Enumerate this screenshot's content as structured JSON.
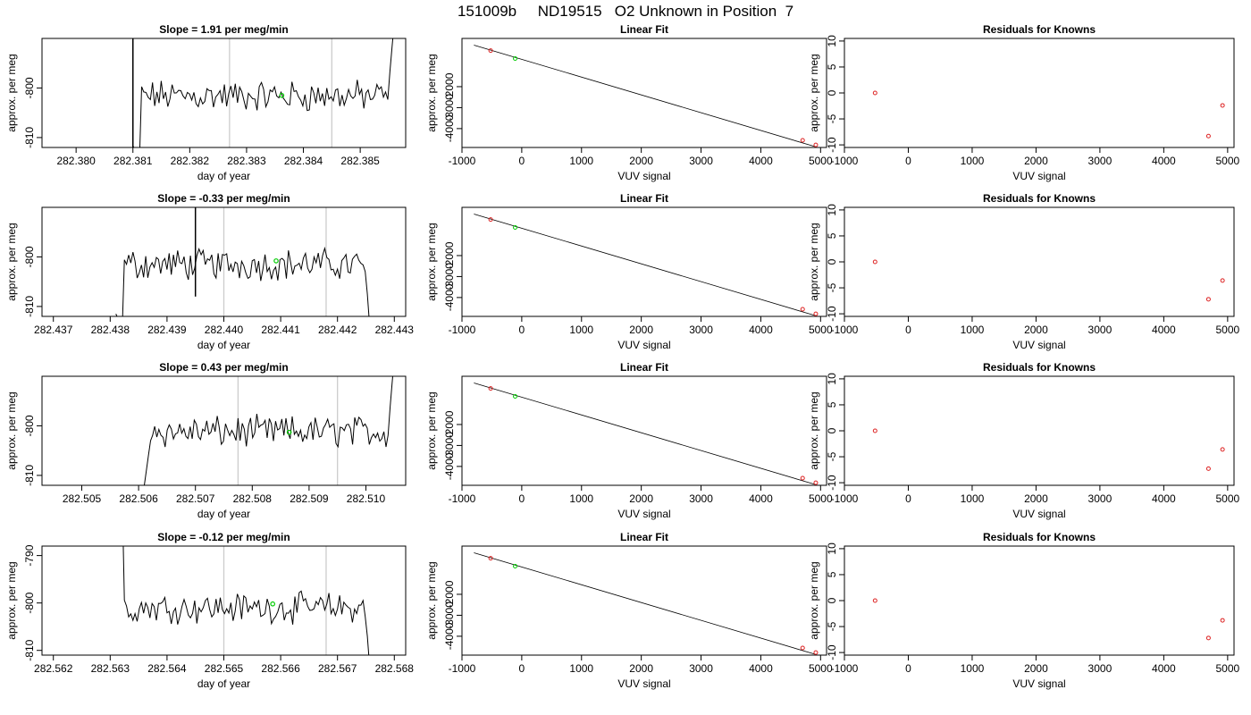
{
  "figure_title": "151009b     ND19515   O2 Unknown in Position  7",
  "chart_data": [
    {
      "type": "line",
      "title": "Slope =  1.91  per meg/min",
      "xlabel": "day of year",
      "ylabel": "approx. per meg",
      "xlim": [
        282.3794,
        282.3858
      ],
      "ylim": [
        -812,
        -790
      ],
      "xticks": [
        "282.380",
        "282.381",
        "282.382",
        "282.383",
        "282.384",
        "282.385"
      ],
      "yticks": [
        "-800",
        "-810"
      ],
      "vlines": [
        282.3827,
        282.3845
      ],
      "trace": {
        "start": 282.381,
        "end": 282.3856,
        "base": -801.6,
        "leading_spike": 282.381,
        "trailing_rise": 282.3856,
        "marker_x": 282.38362,
        "marker_y": -801.5
      },
      "color": "#000000",
      "vline_color": "#cccccc",
      "marker_color": "#00cc00"
    },
    {
      "type": "scatter",
      "title": "Linear Fit",
      "xlabel": "VUV signal",
      "ylabel": "approx. per meg",
      "xlim": [
        -1000,
        5100
      ],
      "ylim": [
        -4900,
        300
      ],
      "xticks": [
        "-1000",
        "0",
        "1000",
        "2000",
        "3000",
        "4000",
        "5000"
      ],
      "yticks": [
        "-2000",
        "-3000",
        "-4000"
      ],
      "fit_line": {
        "x": [
          -800,
          4920
        ],
        "y": [
          -18,
          -4870
        ]
      },
      "knowns": {
        "x": [
          -520,
          4700,
          4920
        ],
        "y": [
          -280,
          -4560,
          -4780
        ]
      },
      "unknown": {
        "x": [
          -110
        ],
        "y": [
          -660
        ]
      },
      "known_color": "#dd2222",
      "unknown_color": "#00cc00"
    },
    {
      "type": "scatter",
      "title": "Residuals for Knowns",
      "xlabel": "VUV signal",
      "ylabel": "approx. per meg",
      "xlim": [
        -1000,
        5100
      ],
      "ylim": [
        -10.5,
        10.5
      ],
      "xticks": [
        "-1000",
        "0",
        "1000",
        "2000",
        "3000",
        "4000",
        "5000"
      ],
      "yticks": [
        "10",
        "5",
        "0",
        "-5",
        "-10"
      ],
      "points": {
        "x": [
          -520,
          4700,
          4920
        ],
        "y": [
          0,
          -8.3,
          -2.4
        ]
      },
      "point_color": "#dd2222"
    },
    {
      "type": "line",
      "title": "Slope =  -0.33  per meg/min",
      "xlabel": "day of year",
      "ylabel": "approx. per meg",
      "xlim": [
        282.4368,
        282.4432
      ],
      "ylim": [
        -812,
        -790
      ],
      "xticks": [
        "282.437",
        "282.438",
        "282.439",
        "282.440",
        "282.441",
        "282.442",
        "282.443"
      ],
      "yticks": [
        "-800",
        "-810"
      ],
      "vlines": [
        282.44,
        282.4418
      ],
      "trace": {
        "start": 282.4381,
        "end": 282.4426,
        "base": -801.5,
        "leading_spike": 282.4395,
        "trailing_drop": 282.4426,
        "marker_x": 282.44092,
        "marker_y": -800.8
      },
      "color": "#000000",
      "vline_color": "#cccccc",
      "marker_color": "#00cc00"
    },
    {
      "type": "scatter",
      "title": "Linear Fit",
      "xlabel": "VUV signal",
      "ylabel": "approx. per meg",
      "xlim": [
        -1000,
        5100
      ],
      "ylim": [
        -4900,
        300
      ],
      "xticks": [
        "-1000",
        "0",
        "1000",
        "2000",
        "3000",
        "4000",
        "5000"
      ],
      "yticks": [
        "-2000",
        "-3000",
        "-4000"
      ],
      "fit_line": {
        "x": [
          -800,
          4920
        ],
        "y": [
          -18,
          -4870
        ]
      },
      "knowns": {
        "x": [
          -520,
          4700,
          4920
        ],
        "y": [
          -280,
          -4560,
          -4780
        ]
      },
      "unknown": {
        "x": [
          -110
        ],
        "y": [
          -660
        ]
      },
      "known_color": "#dd2222",
      "unknown_color": "#00cc00"
    },
    {
      "type": "scatter",
      "title": "Residuals for Knowns",
      "xlabel": "VUV signal",
      "ylabel": "approx. per meg",
      "xlim": [
        -1000,
        5100
      ],
      "ylim": [
        -10.5,
        10.5
      ],
      "xticks": [
        "-1000",
        "0",
        "1000",
        "2000",
        "3000",
        "4000",
        "5000"
      ],
      "yticks": [
        "10",
        "5",
        "0",
        "-5",
        "-10"
      ],
      "points": {
        "x": [
          -520,
          4700,
          4920
        ],
        "y": [
          0,
          -7.2,
          -3.6
        ]
      },
      "point_color": "#dd2222"
    },
    {
      "type": "line",
      "title": "Slope =  0.43  per meg/min",
      "xlabel": "day of year",
      "ylabel": "approx. per meg",
      "xlim": [
        282.5043,
        282.5107
      ],
      "ylim": [
        -812,
        -790
      ],
      "xticks": [
        "282.505",
        "282.506",
        "282.507",
        "282.508",
        "282.509",
        "282.510"
      ],
      "yticks": [
        "-800",
        "-810"
      ],
      "vlines": [
        282.50775,
        282.5095
      ],
      "trace": {
        "start": 282.5061,
        "end": 282.5105,
        "base": -801.2,
        "leading_rise": 282.5061,
        "trailing_rise": 282.5104,
        "marker_x": 282.50865,
        "marker_y": -801.3
      },
      "color": "#000000",
      "vline_color": "#cccccc",
      "marker_color": "#00cc00"
    },
    {
      "type": "scatter",
      "title": "Linear Fit",
      "xlabel": "VUV signal",
      "ylabel": "approx. per meg",
      "xlim": [
        -1000,
        5100
      ],
      "ylim": [
        -4900,
        300
      ],
      "xticks": [
        "-1000",
        "0",
        "1000",
        "2000",
        "3000",
        "4000",
        "5000"
      ],
      "yticks": [
        "-2000",
        "-3000",
        "-4000"
      ],
      "fit_line": {
        "x": [
          -800,
          4920
        ],
        "y": [
          -18,
          -4870
        ]
      },
      "knowns": {
        "x": [
          -520,
          4700,
          4920
        ],
        "y": [
          -280,
          -4560,
          -4780
        ]
      },
      "unknown": {
        "x": [
          -110
        ],
        "y": [
          -660
        ]
      },
      "known_color": "#dd2222",
      "unknown_color": "#00cc00"
    },
    {
      "type": "scatter",
      "title": "Residuals for Knowns",
      "xlabel": "VUV signal",
      "ylabel": "approx. per meg",
      "xlim": [
        -1000,
        5100
      ],
      "ylim": [
        -10.5,
        10.5
      ],
      "xticks": [
        "-1000",
        "0",
        "1000",
        "2000",
        "3000",
        "4000",
        "5000"
      ],
      "yticks": [
        "10",
        "5",
        "0",
        "-5",
        "-10"
      ],
      "points": {
        "x": [
          -520,
          4700,
          4920
        ],
        "y": [
          0,
          -7.3,
          -3.6
        ]
      },
      "point_color": "#dd2222"
    },
    {
      "type": "line",
      "title": "Slope =  -0.12  per meg/min",
      "xlabel": "day of year",
      "ylabel": "approx. per meg",
      "xlim": [
        282.5618,
        282.5682
      ],
      "ylim": [
        -811,
        -788
      ],
      "xticks": [
        "282.562",
        "282.563",
        "282.564",
        "282.565",
        "282.566",
        "282.567",
        "282.568"
      ],
      "yticks": [
        "-790",
        "-800",
        "-810"
      ],
      "vlines": [
        282.565,
        282.5668
      ],
      "trace": {
        "start": 282.5631,
        "end": 282.5676,
        "base": -801.0,
        "leading_descent": 282.5631,
        "trailing_drop": 282.5676,
        "marker_x": 282.56586,
        "marker_y": -800.2
      },
      "color": "#000000",
      "vline_color": "#cccccc",
      "marker_color": "#00cc00"
    },
    {
      "type": "scatter",
      "title": "Linear Fit",
      "xlabel": "VUV signal",
      "ylabel": "approx. per meg",
      "xlim": [
        -1000,
        5100
      ],
      "ylim": [
        -4900,
        300
      ],
      "xticks": [
        "-1000",
        "0",
        "1000",
        "2000",
        "3000",
        "4000",
        "5000"
      ],
      "yticks": [
        "-2000",
        "-3000",
        "-4000"
      ],
      "fit_line": {
        "x": [
          -800,
          4920
        ],
        "y": [
          -18,
          -4870
        ]
      },
      "knowns": {
        "x": [
          -520,
          4700,
          4920
        ],
        "y": [
          -280,
          -4560,
          -4780
        ]
      },
      "unknown": {
        "x": [
          -110
        ],
        "y": [
          -660
        ]
      },
      "known_color": "#dd2222",
      "unknown_color": "#00cc00"
    },
    {
      "type": "scatter",
      "title": "Residuals for Knowns",
      "xlabel": "VUV signal",
      "ylabel": "approx. per meg",
      "xlim": [
        -1000,
        5100
      ],
      "ylim": [
        -10.5,
        10.5
      ],
      "xticks": [
        "-1000",
        "0",
        "1000",
        "2000",
        "3000",
        "4000",
        "5000"
      ],
      "yticks": [
        "10",
        "5",
        "0",
        "-5",
        "-10"
      ],
      "points": {
        "x": [
          -520,
          4700,
          4920
        ],
        "y": [
          0,
          -7.2,
          -3.8
        ]
      },
      "point_color": "#dd2222"
    }
  ]
}
